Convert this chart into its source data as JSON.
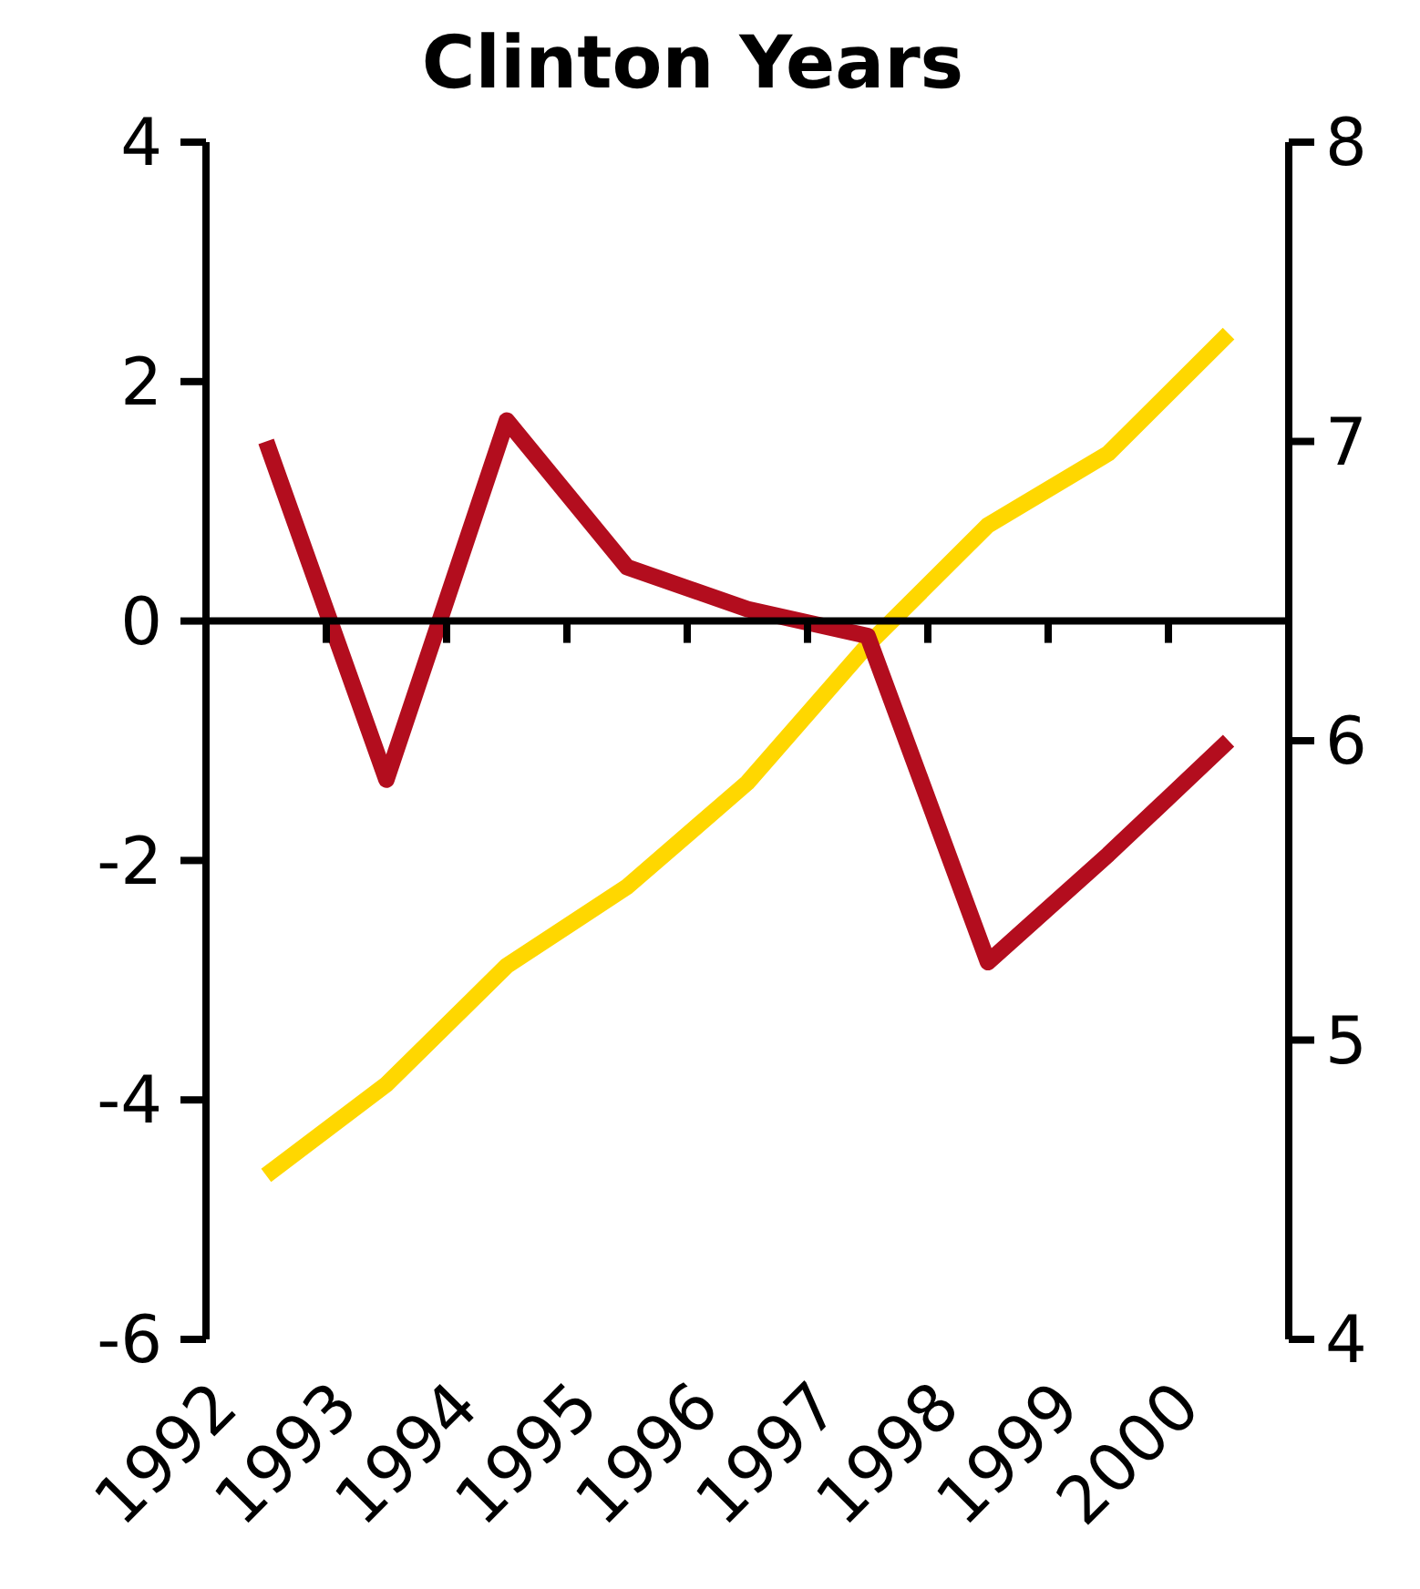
{
  "chart_data": {
    "type": "line",
    "title": "Clinton Years",
    "categories": [
      "1992",
      "1993",
      "1994",
      "1995",
      "1996",
      "1997",
      "1998",
      "1999",
      "2000"
    ],
    "series": [
      {
        "color": "#ffd700",
        "values": [
          -4.63,
          -3.87,
          -2.88,
          -2.22,
          -1.35,
          -0.2,
          0.8,
          1.4,
          2.4
        ]
      },
      {
        "color": "#b30d1e",
        "axis": "y2",
        "values": [
          7.0,
          5.87,
          7.07,
          6.58,
          6.44,
          6.35,
          5.26,
          5.62,
          6.0
        ]
      }
    ],
    "ylim": [
      -6,
      4
    ],
    "yticks": [
      -6,
      -4,
      -2,
      0,
      2,
      4
    ],
    "y2lim": [
      4,
      8
    ],
    "y2ticks": [
      4,
      5,
      6,
      7,
      8
    ],
    "ref_lines": [
      {
        "axis": "y",
        "value": 0,
        "color": "#000000"
      }
    ],
    "marker": "none",
    "line_style": "solid"
  }
}
